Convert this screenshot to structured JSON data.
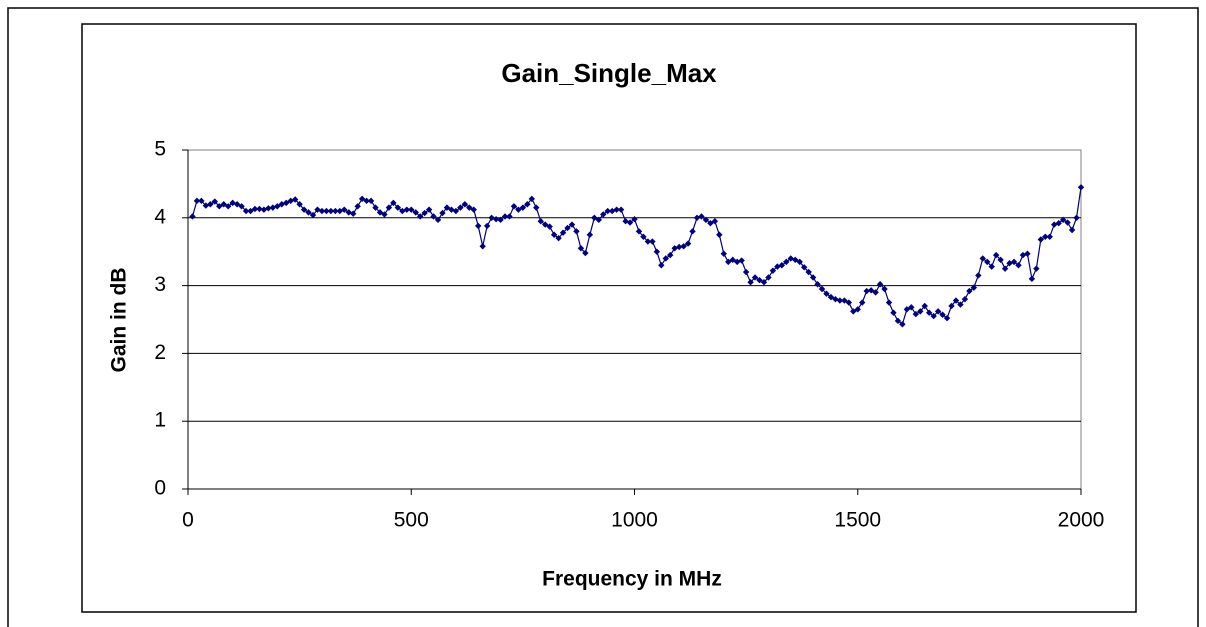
{
  "chart_data": {
    "type": "line",
    "title": "Gain_Single_Max",
    "xlabel": "Frequency in MHz",
    "ylabel": "Gain in dB",
    "xlim": [
      0,
      2000
    ],
    "xticks": [
      0,
      500,
      1000,
      1500,
      2000
    ],
    "ylim": [
      0,
      5
    ],
    "yticks": [
      0,
      1,
      2,
      3,
      4,
      5
    ],
    "grid": true,
    "x": [
      10,
      20,
      30,
      40,
      50,
      60,
      70,
      80,
      90,
      100,
      110,
      120,
      130,
      140,
      150,
      160,
      170,
      180,
      190,
      200,
      210,
      220,
      230,
      240,
      250,
      260,
      270,
      280,
      290,
      300,
      310,
      320,
      330,
      340,
      350,
      360,
      370,
      380,
      390,
      400,
      410,
      420,
      430,
      440,
      450,
      460,
      470,
      480,
      490,
      500,
      510,
      520,
      530,
      540,
      550,
      560,
      570,
      580,
      590,
      600,
      610,
      620,
      630,
      640,
      650,
      660,
      670,
      680,
      690,
      700,
      710,
      720,
      730,
      740,
      750,
      760,
      770,
      780,
      790,
      800,
      810,
      820,
      830,
      840,
      850,
      860,
      870,
      880,
      890,
      900,
      910,
      920,
      930,
      940,
      950,
      960,
      970,
      980,
      990,
      1000,
      1010,
      1020,
      1030,
      1040,
      1050,
      1060,
      1070,
      1080,
      1090,
      1100,
      1110,
      1120,
      1130,
      1140,
      1150,
      1160,
      1170,
      1180,
      1190,
      1200,
      1210,
      1220,
      1230,
      1240,
      1250,
      1260,
      1270,
      1280,
      1290,
      1300,
      1310,
      1320,
      1330,
      1340,
      1350,
      1360,
      1370,
      1380,
      1390,
      1400,
      1410,
      1420,
      1430,
      1440,
      1450,
      1460,
      1470,
      1480,
      1490,
      1500,
      1510,
      1520,
      1530,
      1540,
      1550,
      1560,
      1570,
      1580,
      1590,
      1600,
      1610,
      1620,
      1630,
      1640,
      1650,
      1660,
      1670,
      1680,
      1690,
      1700,
      1710,
      1720,
      1730,
      1740,
      1750,
      1760,
      1770,
      1780,
      1790,
      1800,
      1810,
      1820,
      1830,
      1840,
      1850,
      1860,
      1870,
      1880,
      1890,
      1900,
      1910,
      1920,
      1930,
      1940,
      1950,
      1960,
      1970,
      1980,
      1990,
      2000
    ],
    "series": [
      {
        "color": "#000080",
        "values": [
          4.02,
          4.25,
          4.25,
          4.18,
          4.2,
          4.24,
          4.17,
          4.2,
          4.17,
          4.22,
          4.2,
          4.17,
          4.1,
          4.1,
          4.13,
          4.13,
          4.12,
          4.14,
          4.15,
          4.17,
          4.2,
          4.22,
          4.25,
          4.27,
          4.2,
          4.12,
          4.08,
          4.04,
          4.12,
          4.1,
          4.1,
          4.1,
          4.1,
          4.1,
          4.12,
          4.08,
          4.06,
          4.17,
          4.28,
          4.25,
          4.25,
          4.15,
          4.08,
          4.05,
          4.15,
          4.22,
          4.15,
          4.1,
          4.12,
          4.12,
          4.08,
          4.02,
          4.07,
          4.12,
          4.02,
          3.97,
          4.07,
          4.15,
          4.12,
          4.1,
          4.15,
          4.2,
          4.15,
          4.12,
          3.88,
          3.58,
          3.88,
          4.0,
          3.98,
          3.97,
          4.02,
          4.02,
          4.17,
          4.12,
          4.15,
          4.2,
          4.28,
          4.15,
          3.95,
          3.9,
          3.87,
          3.75,
          3.7,
          3.78,
          3.85,
          3.9,
          3.8,
          3.55,
          3.48,
          3.75,
          4.0,
          3.97,
          4.05,
          4.1,
          4.1,
          4.12,
          4.12,
          3.95,
          3.93,
          3.98,
          3.8,
          3.72,
          3.65,
          3.65,
          3.5,
          3.3,
          3.4,
          3.45,
          3.55,
          3.57,
          3.58,
          3.62,
          3.8,
          4.0,
          4.02,
          3.97,
          3.92,
          3.95,
          3.75,
          3.47,
          3.35,
          3.38,
          3.35,
          3.37,
          3.2,
          3.05,
          3.12,
          3.08,
          3.05,
          3.12,
          3.22,
          3.28,
          3.3,
          3.35,
          3.4,
          3.38,
          3.35,
          3.27,
          3.2,
          3.12,
          3.02,
          2.95,
          2.88,
          2.83,
          2.8,
          2.78,
          2.78,
          2.75,
          2.62,
          2.65,
          2.75,
          2.92,
          2.93,
          2.9,
          3.02,
          2.95,
          2.75,
          2.6,
          2.48,
          2.43,
          2.65,
          2.68,
          2.58,
          2.62,
          2.7,
          2.6,
          2.55,
          2.62,
          2.57,
          2.52,
          2.7,
          2.78,
          2.72,
          2.8,
          2.92,
          2.97,
          3.15,
          3.4,
          3.35,
          3.28,
          3.45,
          3.38,
          3.25,
          3.33,
          3.35,
          3.3,
          3.45,
          3.47,
          3.1,
          3.25,
          3.68,
          3.72,
          3.72,
          3.9,
          3.92,
          3.97,
          3.93,
          3.82,
          4.0,
          4.45
        ]
      }
    ]
  }
}
